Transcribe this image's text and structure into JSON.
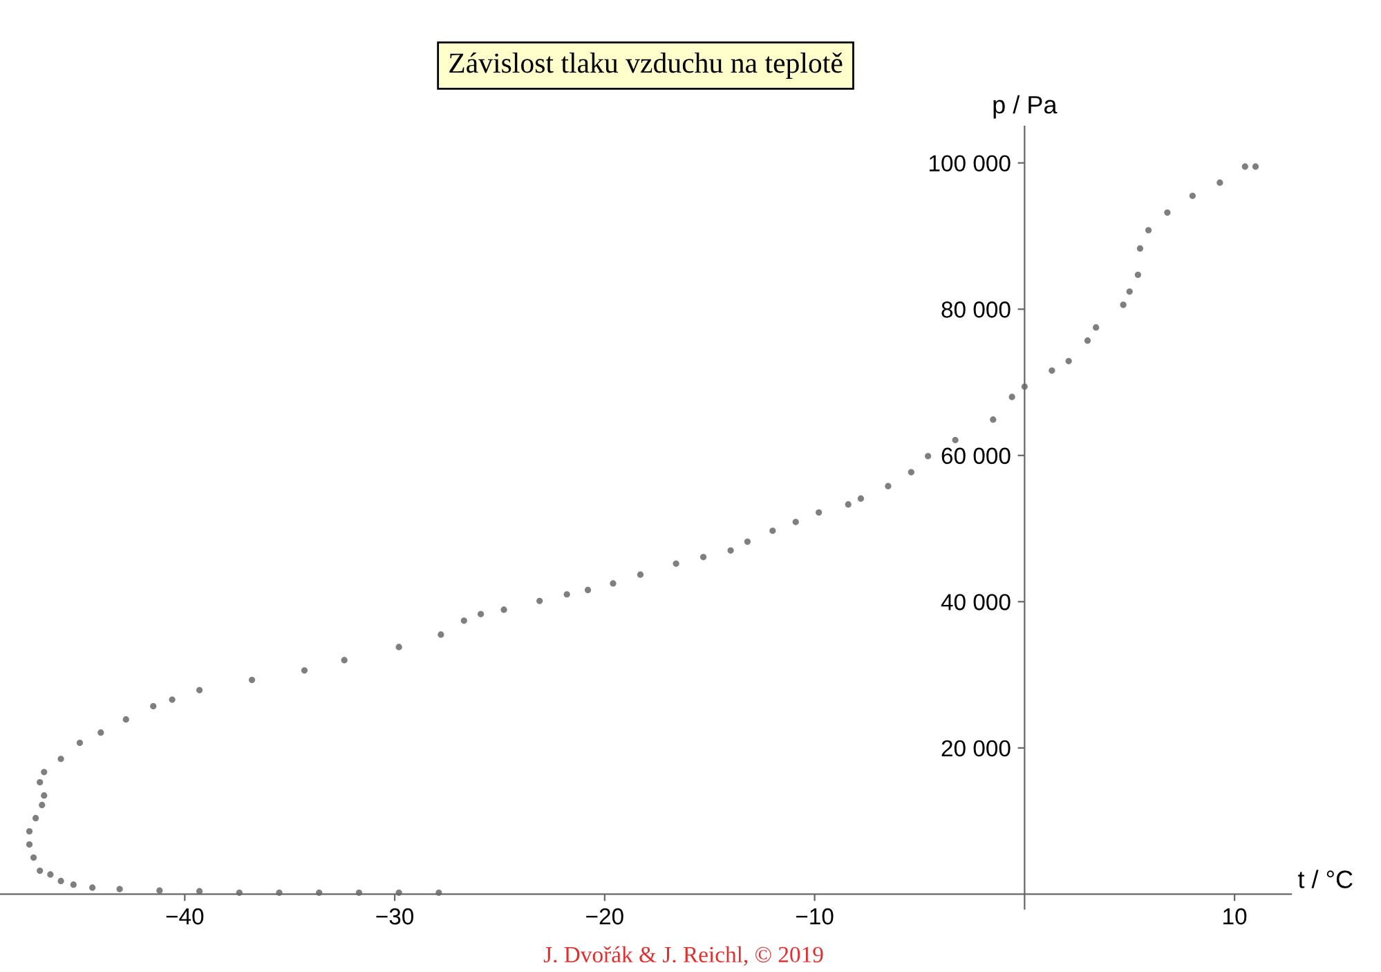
{
  "chart_data": {
    "type": "scatter",
    "title": "Závislost tlaku vzduchu na teplotě",
    "xlabel": "t / °C",
    "ylabel": "p / Pa",
    "annotations": [
      "J. Dvořák & J. Reichl, © 2019"
    ],
    "marker": "circle",
    "grid": false,
    "legend": false,
    "xlim": [
      -48.8,
      12.7
    ],
    "ylim": [
      -2000,
      105000
    ],
    "xticks": [
      {
        "value": -40,
        "label": "−40"
      },
      {
        "value": -30,
        "label": "−30"
      },
      {
        "value": -20,
        "label": "−20"
      },
      {
        "value": -10,
        "label": "−10"
      },
      10
    ],
    "yticks": [
      {
        "value": 20000,
        "label": "20 000"
      },
      {
        "value": 40000,
        "label": "40 000"
      },
      {
        "value": 60000,
        "label": "60 000"
      },
      {
        "value": 80000,
        "label": "80 000"
      },
      {
        "value": 100000,
        "label": "100 000"
      }
    ],
    "series": [
      {
        "color": "#7f7f7f",
        "x": [
          -27.9,
          -29.8,
          -31.7,
          -33.6,
          -35.5,
          -37.4,
          -39.3,
          -41.2,
          -43.1,
          -44.4,
          -45.3,
          -45.9,
          -46.4,
          -46.9,
          -47.2,
          -47.4,
          -47.4,
          -47.1,
          -46.8,
          -46.7,
          -46.9,
          -46.7,
          -45.9,
          -45.0,
          -44.0,
          -42.8,
          -41.5,
          -40.6,
          -39.3,
          -36.8,
          -34.3,
          -32.4,
          -29.8,
          -27.8,
          -26.7,
          -25.9,
          -24.8,
          -23.1,
          -21.8,
          -20.8,
          -19.6,
          -18.3,
          -16.6,
          -15.3,
          -14.0,
          -13.2,
          -12.0,
          -10.9,
          -9.8,
          -8.4,
          -7.8,
          -6.5,
          -5.4,
          -4.6,
          -3.3,
          -1.5,
          -0.6,
          0.0,
          1.3,
          2.1,
          3.0,
          3.4,
          4.7,
          5.0,
          5.4,
          5.5,
          5.9,
          6.8,
          8.0,
          9.3,
          10.5,
          11.0
        ],
        "values": [
          200,
          200,
          200,
          200,
          200,
          200,
          400,
          500,
          700,
          900,
          1300,
          1800,
          2700,
          3200,
          5000,
          6800,
          8600,
          10400,
          12200,
          13500,
          15300,
          16700,
          18500,
          20700,
          22100,
          23900,
          25700,
          26600,
          27900,
          29300,
          30600,
          32000,
          33800,
          35500,
          37400,
          38300,
          38900,
          40100,
          41000,
          41600,
          42500,
          43700,
          45200,
          46100,
          47000,
          48200,
          49700,
          50900,
          52200,
          53300,
          54100,
          55800,
          57700,
          59900,
          62100,
          64900,
          68000,
          69400,
          71600,
          72900,
          75700,
          77500,
          80600,
          82400,
          84700,
          88300,
          90800,
          93200,
          95500,
          97300,
          99500,
          99500
        ]
      }
    ]
  }
}
